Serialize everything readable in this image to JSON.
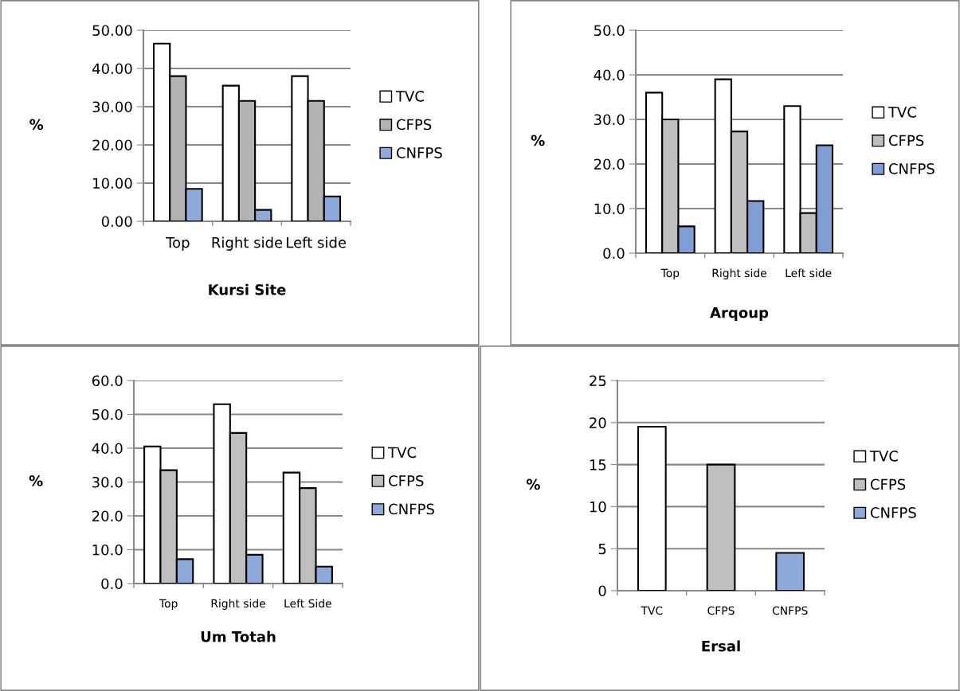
{
  "chart_data": [
    {
      "type": "bar",
      "title": "Kursi Site",
      "ylabel": "%",
      "categories": [
        "Top",
        "Right side",
        "Left side"
      ],
      "ylim": [
        0,
        50
      ],
      "yticks": [
        {
          "value": 0,
          "label": "0.00"
        },
        {
          "value": 10,
          "label": "10.00"
        },
        {
          "value": 20,
          "label": "20.00"
        },
        {
          "value": 30,
          "label": "30.00"
        },
        {
          "value": 40,
          "label": "40.00"
        },
        {
          "value": 50,
          "label": "50.00"
        }
      ],
      "grid": "y",
      "legend": "right",
      "series": [
        {
          "name": "TVC",
          "color": "#ffffff",
          "values": [
            46.5,
            35.5,
            38.0
          ]
        },
        {
          "name": "CFPS",
          "color": "#b3b3b3",
          "values": [
            38.0,
            31.5,
            31.5
          ]
        },
        {
          "name": "CNFPS",
          "color": "#8eaadb",
          "values": [
            8.5,
            3.0,
            6.5
          ]
        }
      ]
    },
    {
      "type": "bar",
      "title": "Arqoup",
      "ylabel": "%",
      "categories": [
        "Top",
        "Right side",
        "Left side"
      ],
      "ylim": [
        0,
        50
      ],
      "yticks": [
        {
          "value": 0,
          "label": "0.0"
        },
        {
          "value": 10,
          "label": "10.0"
        },
        {
          "value": 20,
          "label": "20.0"
        },
        {
          "value": 30,
          "label": "30.0"
        },
        {
          "value": 40,
          "label": "40.0"
        },
        {
          "value": 50,
          "label": "50.0"
        }
      ],
      "grid": "y",
      "legend": "right",
      "series": [
        {
          "name": "TVC",
          "color": "#ffffff",
          "values": [
            36.0,
            39.0,
            33.0
          ]
        },
        {
          "name": "CFPS",
          "color": "#bfbfbf",
          "values": [
            30.0,
            27.3,
            9.0
          ]
        },
        {
          "name": "CNFPS",
          "color": "#7f9fd4",
          "values": [
            6.0,
            11.7,
            24.2
          ]
        }
      ]
    },
    {
      "type": "bar",
      "title": "Um Totah",
      "ylabel": "%",
      "categories": [
        "Top",
        "Right side",
        "Left Side"
      ],
      "ylim": [
        0,
        60
      ],
      "yticks": [
        {
          "value": 0,
          "label": "0.0"
        },
        {
          "value": 10,
          "label": "10.0"
        },
        {
          "value": 20,
          "label": "20.0"
        },
        {
          "value": 30,
          "label": "30.0"
        },
        {
          "value": 40,
          "label": "40.0"
        },
        {
          "value": 50,
          "label": "50.0"
        },
        {
          "value": 60,
          "label": "60.0"
        }
      ],
      "grid": "y",
      "legend": "right",
      "series": [
        {
          "name": "TVC",
          "color": "#ffffff",
          "values": [
            40.5,
            53.0,
            32.8
          ]
        },
        {
          "name": "CFPS",
          "color": "#bfbfbf",
          "values": [
            33.5,
            44.5,
            28.2
          ]
        },
        {
          "name": "CNFPS",
          "color": "#8eaadb",
          "values": [
            7.2,
            8.5,
            5.0
          ]
        }
      ]
    },
    {
      "type": "bar",
      "title": "Ersal",
      "ylabel": "%",
      "categories": [
        "TVC",
        "CFPS",
        "CNFPS"
      ],
      "ylim": [
        0,
        25
      ],
      "yticks": [
        0,
        5,
        10,
        15,
        20,
        25
      ],
      "grid": "y",
      "legend": "right",
      "series": [
        {
          "name": "TVC",
          "color": "#ffffff",
          "values": [
            19.5,
            null,
            null
          ]
        },
        {
          "name": "CFPS",
          "color": "#bfbfbf",
          "values": [
            null,
            15.0,
            null
          ]
        },
        {
          "name": "CNFPS",
          "color": "#8eaadb",
          "values": [
            null,
            null,
            4.5
          ]
        }
      ]
    }
  ]
}
